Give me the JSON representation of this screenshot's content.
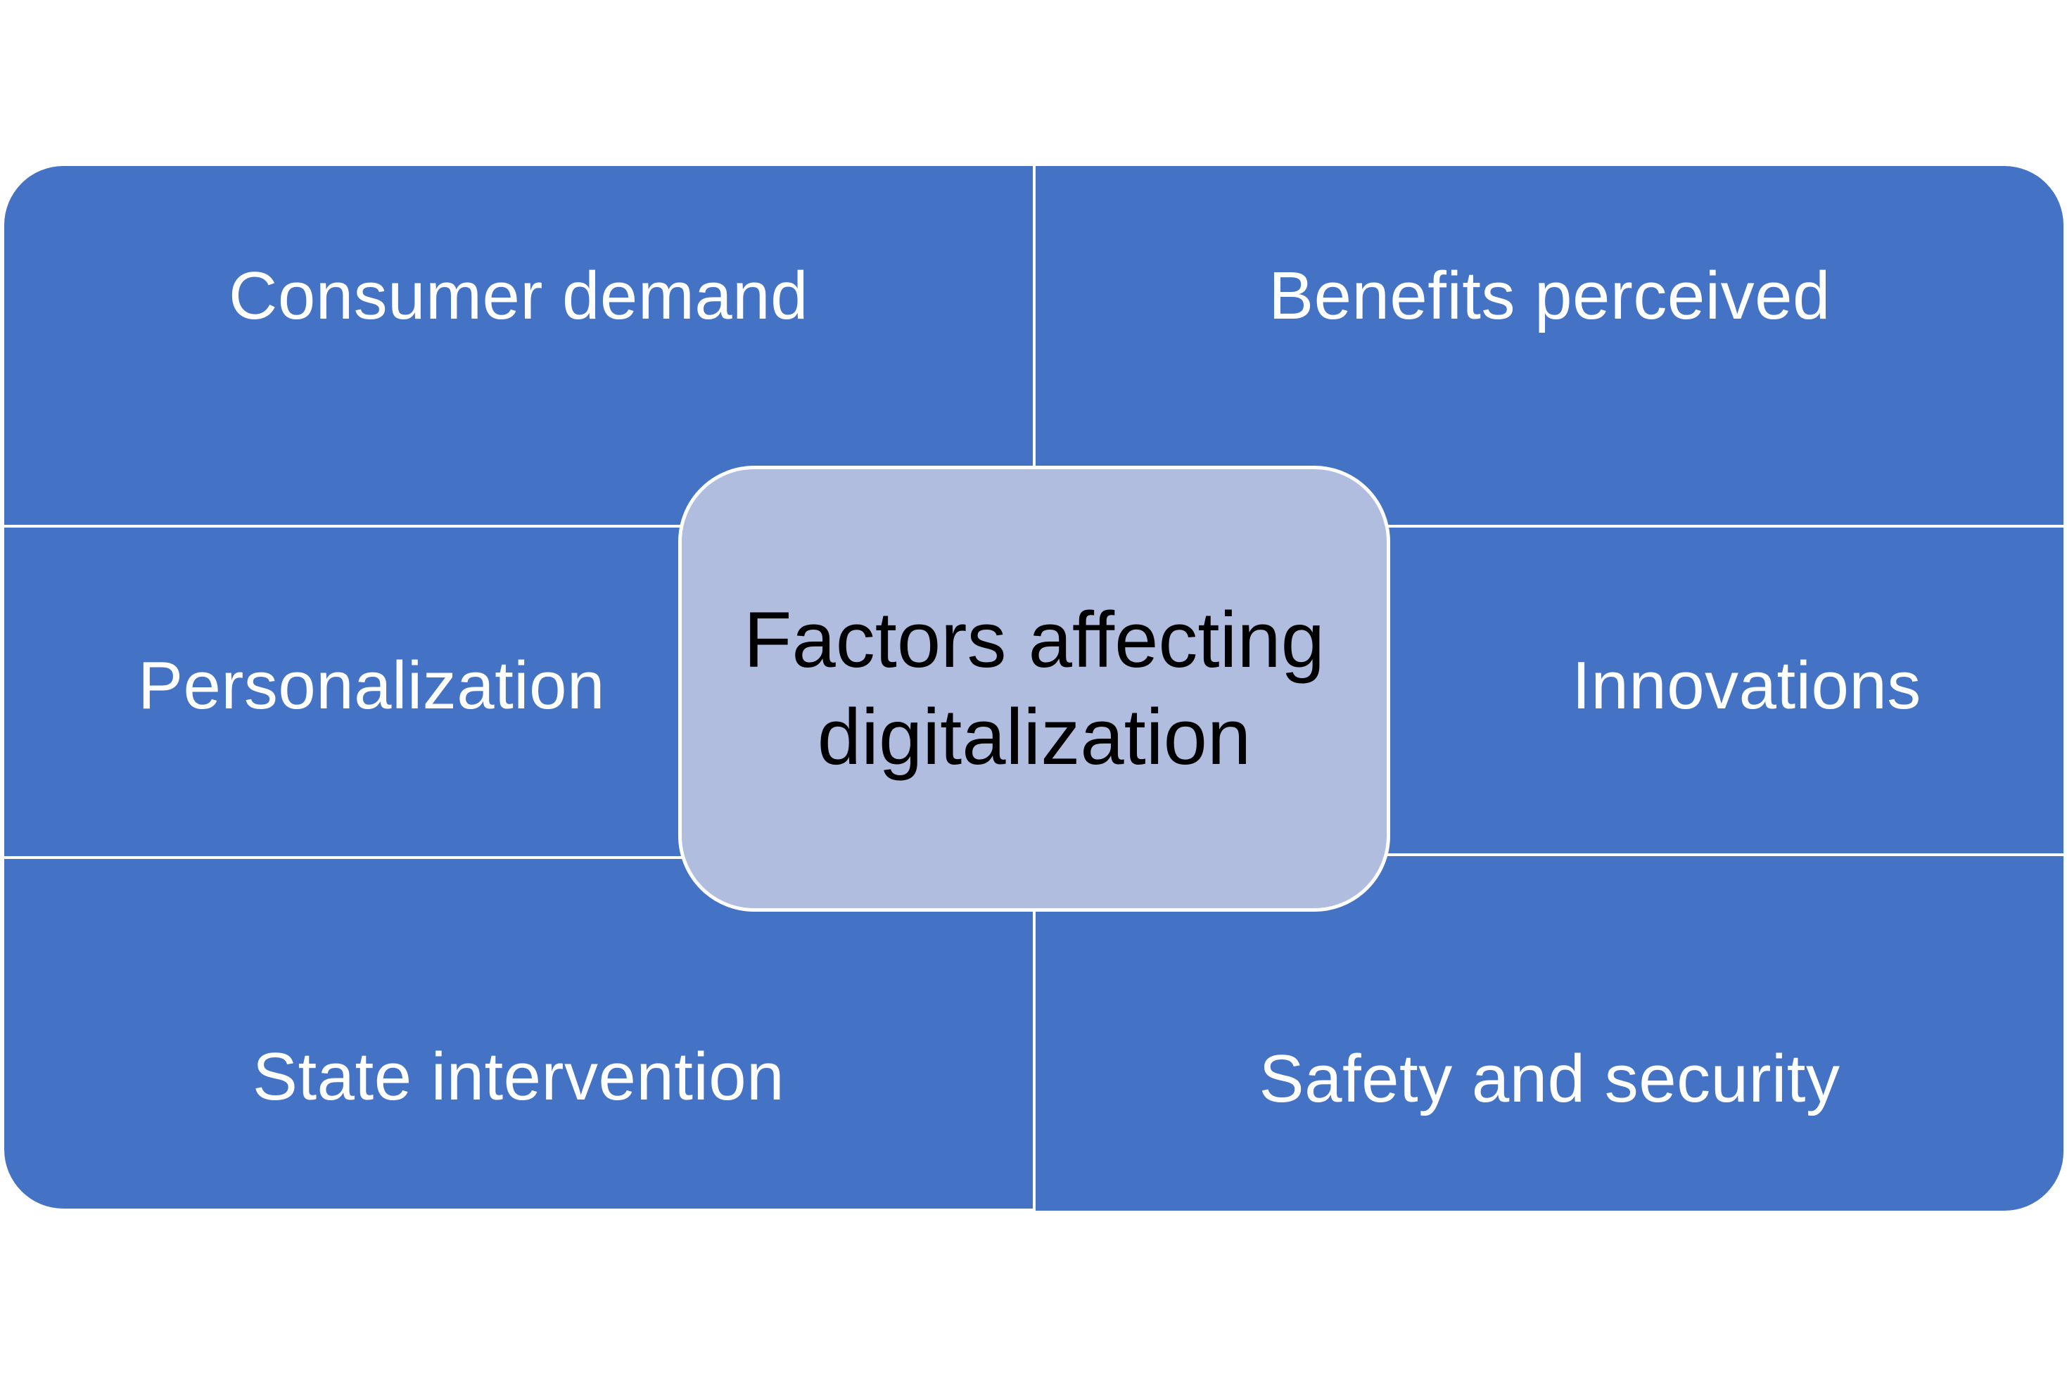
{
  "diagram": {
    "center": {
      "line1": "Factors affecting",
      "line2": "digitalization"
    },
    "factors": {
      "top_left": "Consumer demand",
      "top_right": "Benefits perceived",
      "middle_left": "Personalization",
      "middle_right": "Innovations",
      "bottom_left": "State intervention",
      "bottom_right": "Safety and security"
    },
    "colors": {
      "panel": "#4472c4",
      "center": "#b0bddf",
      "separator": "#ffffff"
    }
  }
}
